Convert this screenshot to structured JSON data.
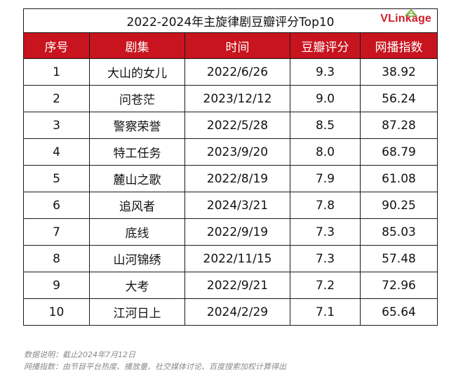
{
  "table": {
    "title": "2022-2024年主旋律剧豆瓣评分Top10",
    "logo": {
      "v": "V",
      "rest": "Linkage"
    },
    "headers": [
      "序号",
      "剧集",
      "时间",
      "豆瓣评分",
      "网播指数"
    ],
    "rows": [
      [
        "1",
        "大山的女儿",
        "2022/6/26",
        "9.3",
        "38.92"
      ],
      [
        "2",
        "问苍茫",
        "2023/12/12",
        "9.0",
        "56.24"
      ],
      [
        "3",
        "警察荣誉",
        "2022/5/28",
        "8.5",
        "87.28"
      ],
      [
        "4",
        "特工任务",
        "2023/9/20",
        "8.0",
        "68.79"
      ],
      [
        "5",
        "麓山之歌",
        "2022/8/19",
        "7.9",
        "61.08"
      ],
      [
        "6",
        "追风者",
        "2024/3/21",
        "7.8",
        "90.25"
      ],
      [
        "7",
        "底线",
        "2022/9/19",
        "7.3",
        "85.03"
      ],
      [
        "8",
        "山河锦绣",
        "2022/11/15",
        "7.3",
        "57.48"
      ],
      [
        "9",
        "大考",
        "2022/9/21",
        "7.2",
        "72.96"
      ],
      [
        "10",
        "江河日上",
        "2024/2/29",
        "7.1",
        "65.64"
      ]
    ],
    "colors": {
      "header_bg": "#c8141e",
      "header_text": "#ffffff",
      "logo": "#d0202a"
    }
  },
  "notes": {
    "line1": "数据说明：截止2024年7月12日",
    "line2": "网播指数：由节目平台热度、播放量、社交媒体讨论、百度搜索加权计算得出"
  },
  "chart_data": {
    "type": "table",
    "title": "2022-2024年主旋律剧豆瓣评分Top10",
    "columns": [
      "序号",
      "剧集",
      "时间",
      "豆瓣评分",
      "网播指数"
    ],
    "rows": [
      [
        "1",
        "大山的女儿",
        "2022/6/26",
        9.3,
        38.92
      ],
      [
        "2",
        "问苍茫",
        "2023/12/12",
        9.0,
        56.24
      ],
      [
        "3",
        "警察荣誉",
        "2022/5/28",
        8.5,
        87.28
      ],
      [
        "4",
        "特工任务",
        "2023/9/20",
        8.0,
        68.79
      ],
      [
        "5",
        "麓山之歌",
        "2022/8/19",
        7.9,
        61.08
      ],
      [
        "6",
        "追风者",
        "2024/3/21",
        7.8,
        90.25
      ],
      [
        "7",
        "底线",
        "2022/9/19",
        7.3,
        85.03
      ],
      [
        "8",
        "山河锦绣",
        "2022/11/15",
        7.3,
        57.48
      ],
      [
        "9",
        "大考",
        "2022/9/21",
        7.2,
        72.96
      ],
      [
        "10",
        "江河日上",
        "2024/2/29",
        7.1,
        65.64
      ]
    ]
  }
}
